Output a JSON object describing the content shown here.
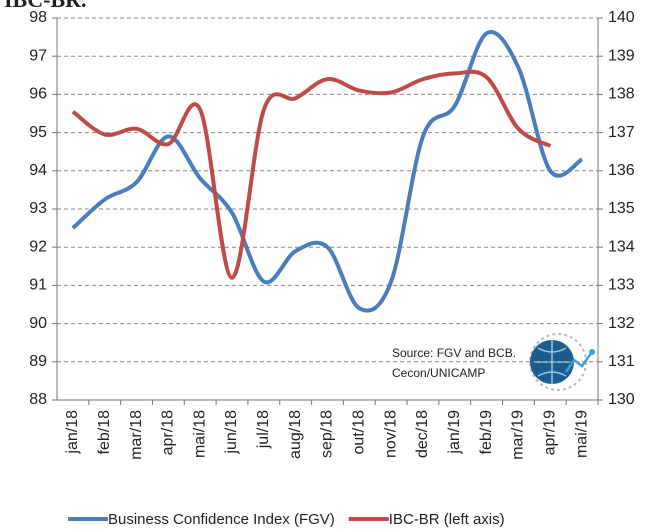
{
  "chart_data": {
    "type": "line",
    "title": "IBC-BR.",
    "annotations": [
      "Source: FGV and BCB.",
      "Cecon/UNICAMP"
    ],
    "categories": [
      "jan/18",
      "feb/18",
      "mar/18",
      "apr/18",
      "mai/18",
      "jun/18",
      "jul/18",
      "aug/18",
      "sep/18",
      "out/18",
      "nov/18",
      "dec/18",
      "jan/19",
      "feb/19",
      "mar/19",
      "apr/19",
      "mai/19"
    ],
    "series": [
      {
        "name": "Business Confidence Index (FGV)",
        "color": "#4a7ebb",
        "axis": "y2",
        "values": [
          134.5,
          135.25,
          135.7,
          136.9,
          135.8,
          134.9,
          133.1,
          133.9,
          134.0,
          132.4,
          133.1,
          136.9,
          137.7,
          139.6,
          138.7,
          136.0,
          136.3
        ]
      },
      {
        "name": "IBC-BR (left axis)",
        "color": "#be4b48",
        "values": [
          95.55,
          94.95,
          95.1,
          94.7,
          95.6,
          91.2,
          95.6,
          95.9,
          96.4,
          96.1,
          96.05,
          96.4,
          96.55,
          96.45,
          95.1,
          94.65,
          null
        ]
      }
    ],
    "ylim": [
      88,
      98
    ],
    "yticks": [
      88,
      89,
      90,
      91,
      92,
      93,
      94,
      95,
      96,
      97,
      98
    ],
    "y2lim": [
      130,
      140
    ],
    "y2ticks": [
      130,
      131,
      132,
      133,
      134,
      135,
      136,
      137,
      138,
      139,
      140
    ],
    "grid": true
  }
}
